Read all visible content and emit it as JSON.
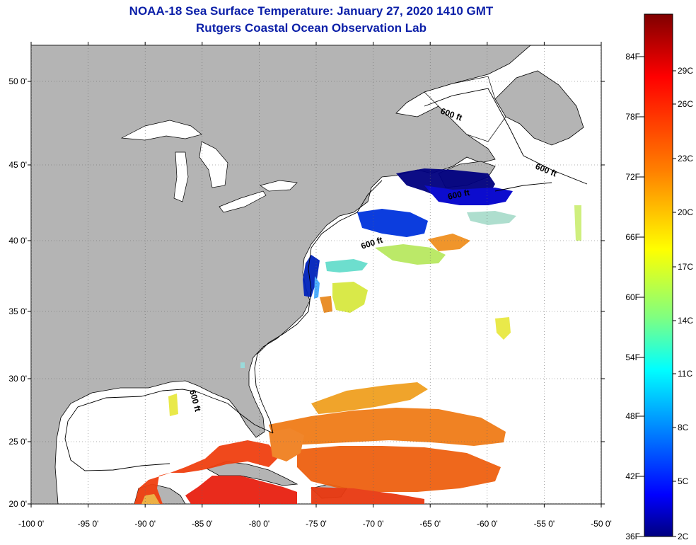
{
  "title": "NOAA-18 Sea Surface Temperature:  January 27, 2020 1410 GMT",
  "subtitle": "Rutgers Coastal Ocean Observation Lab",
  "map": {
    "lat_labels": [
      "50 0'",
      "45 0'",
      "40 0'",
      "35 0'",
      "30 0'",
      "25 0'",
      "20 0'"
    ],
    "lon_labels": [
      "-100 0'",
      "-95 0'",
      "-90 0'",
      "-85 0'",
      "-80 0'",
      "-75 0'",
      "-70 0'",
      "-65 0'",
      "-60 0'",
      "-55 0'",
      "-50 0'"
    ],
    "lat_values": [
      50,
      45,
      40,
      35,
      30,
      25,
      20
    ],
    "lon_values": [
      -100,
      -95,
      -90,
      -85,
      -80,
      -75,
      -70,
      -65,
      -60,
      -55,
      -50
    ],
    "contour_labels": [
      "600 ft",
      "600 ft",
      "600 ft",
      "600 ft",
      "600 ft"
    ],
    "land_color": "#b4b4b4",
    "ocean_color": "#ffffff"
  },
  "colorbar": {
    "fahrenheit_labels": [
      "84F",
      "78F",
      "72F",
      "66F",
      "60F",
      "54F",
      "48F",
      "42F",
      "36F"
    ],
    "celsius_labels": [
      "29C",
      "26C",
      "23C",
      "20C",
      "17C",
      "14C",
      "11C",
      "8C",
      "5C",
      "2C"
    ],
    "stops": [
      "#7f0000",
      "#ff0000",
      "#ff8000",
      "#ffff00",
      "#80ff80",
      "#00ffff",
      "#0080ff",
      "#0000ff",
      "#00007f"
    ]
  }
}
